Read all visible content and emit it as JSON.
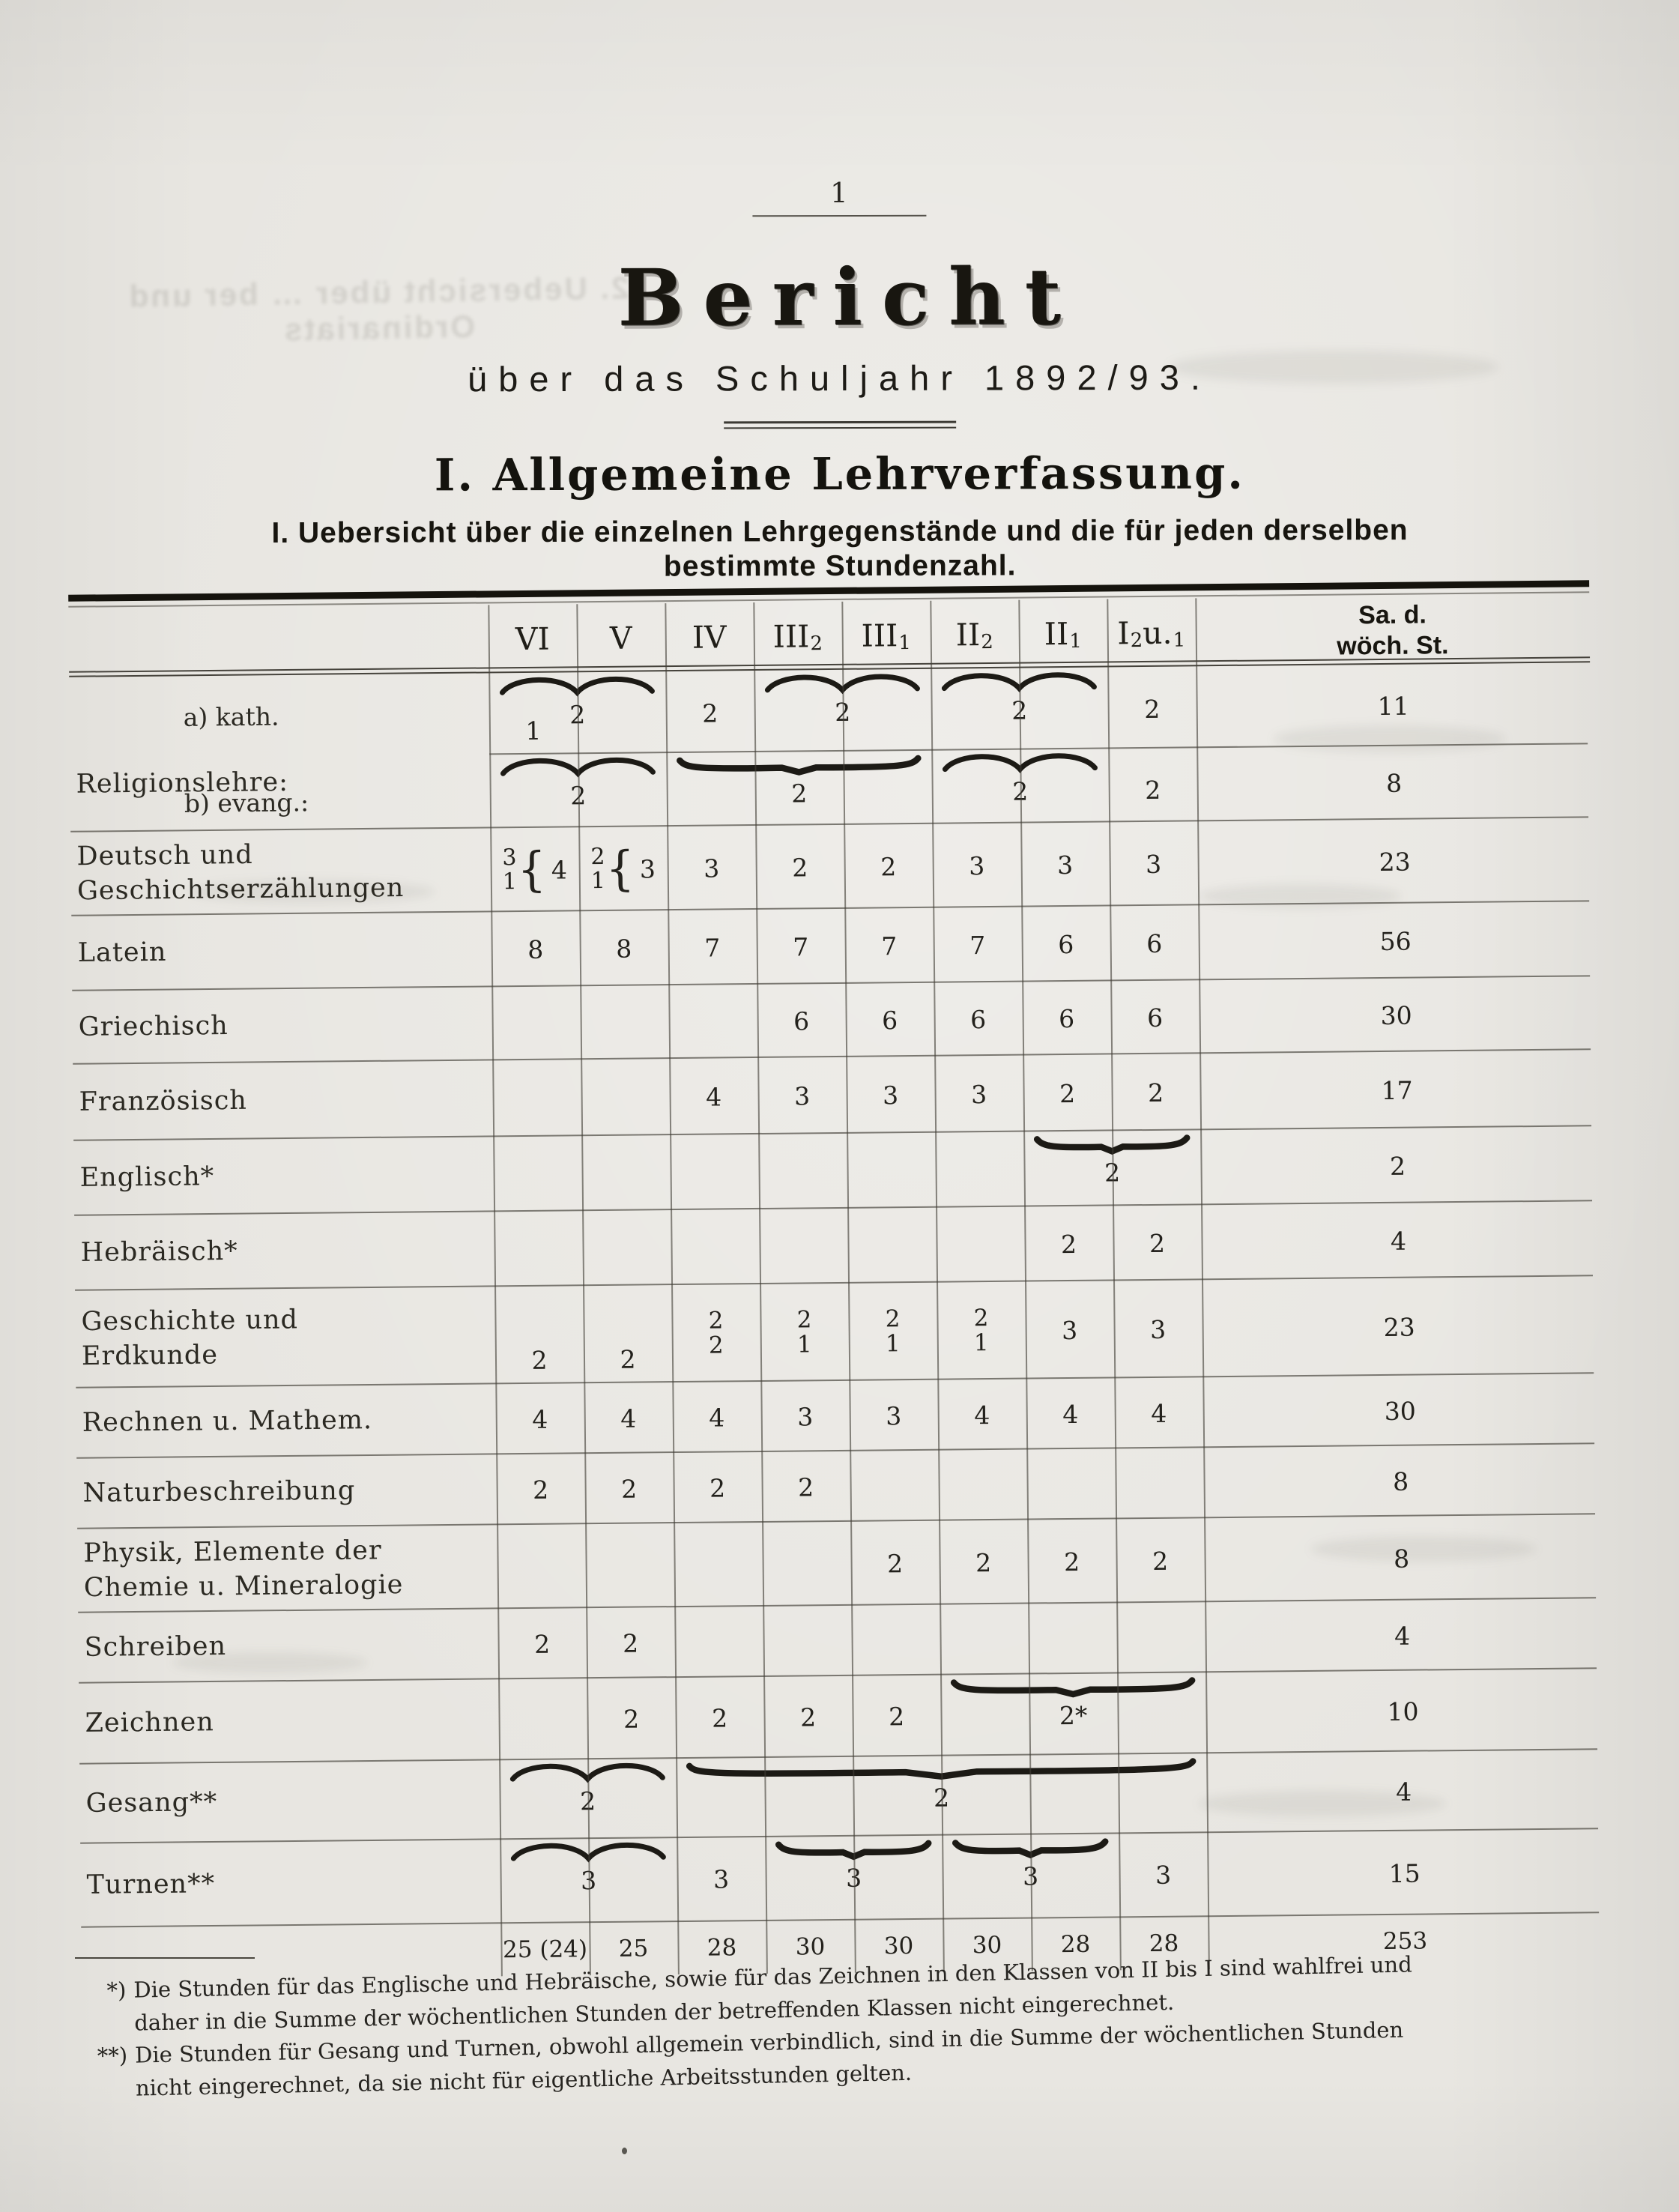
{
  "page": {
    "number": "1",
    "title": "Bericht",
    "subtitle": "über das Schuljahr 1892/93.",
    "section_heading": "I. Allgemeine Lehrverfassung.",
    "subsection_line1": "I. Uebersicht über die einzelnen Lehrgegenstände und die für jeden derselben",
    "subsection_line2": "bestimmte Stundenzahl."
  },
  "bleedthrough": [
    "2. Uebersicht über … ber und Ordinariats"
  ],
  "table": {
    "column_keys": [
      "VI",
      "V",
      "IV",
      "III2",
      "III1",
      "II2",
      "II1",
      "I2u1"
    ],
    "columns": [
      {
        "parts": [
          {
            "t": "VI"
          }
        ]
      },
      {
        "parts": [
          {
            "t": "V"
          }
        ]
      },
      {
        "parts": [
          {
            "t": "IV"
          }
        ]
      },
      {
        "parts": [
          {
            "t": "III"
          },
          {
            "t": "2",
            "sub": true
          }
        ]
      },
      {
        "parts": [
          {
            "t": "III"
          },
          {
            "t": "1",
            "sub": true
          }
        ]
      },
      {
        "parts": [
          {
            "t": "II"
          },
          {
            "t": "2",
            "sub": true
          }
        ]
      },
      {
        "parts": [
          {
            "t": "II"
          },
          {
            "t": "1",
            "sub": true
          }
        ]
      },
      {
        "parts": [
          {
            "t": "I"
          },
          {
            "t": "2",
            "sub": true
          },
          {
            "t": "u."
          },
          {
            "t": "1",
            "sub": true
          }
        ]
      }
    ],
    "sum_header_line1": "Sa. d.",
    "sum_header_line2": "wöch. St.",
    "rows": [
      {
        "id": "religion-kath",
        "indent_label": "a) kath.",
        "cells": [
          {
            "v": "1",
            "low": true
          },
          null,
          {
            "v": "2",
            "hi": true
          },
          null,
          null,
          null,
          null,
          {
            "v": "2",
            "hi": true
          }
        ],
        "braces": [
          {
            "from": 0,
            "to": 1,
            "style": "curly",
            "value": "2"
          },
          {
            "from": 3,
            "to": 4,
            "style": "curly",
            "value": "2"
          },
          {
            "from": 5,
            "to": 6,
            "style": "curly",
            "value": "2"
          }
        ],
        "sum": "11",
        "sep": "values"
      },
      {
        "id": "religion-evang",
        "indent_label": "b) evang.:",
        "side_label": "Religionslehre:",
        "cells": [
          null,
          null,
          null,
          null,
          null,
          null,
          null,
          {
            "v": "2",
            "hi": true
          }
        ],
        "braces": [
          {
            "from": 0,
            "to": 1,
            "style": "curly",
            "value": "2"
          },
          {
            "from": 2,
            "to": 4,
            "style": "flat",
            "value": "2"
          },
          {
            "from": 5,
            "to": 6,
            "style": "curly",
            "value": "2"
          }
        ],
        "sum": "8"
      },
      {
        "id": "deutsch",
        "label": [
          "Deutsch und",
          "Geschichtserzählungen"
        ],
        "cells": [
          {
            "stack": [
              "3",
              "1"
            ],
            "total": "4"
          },
          {
            "stack": [
              "2",
              "1"
            ],
            "total": "3"
          },
          "3",
          "2",
          "2",
          "3",
          "3",
          "3"
        ],
        "sum": "23"
      },
      {
        "id": "latein",
        "label": [
          "Latein"
        ],
        "cells": [
          "8",
          "8",
          "7",
          "7",
          "7",
          "7",
          "6",
          "6"
        ],
        "sum": "56"
      },
      {
        "id": "griechisch",
        "label": [
          "Griechisch"
        ],
        "cells": [
          null,
          null,
          null,
          "6",
          "6",
          "6",
          "6",
          "6"
        ],
        "sum": "30"
      },
      {
        "id": "franzoesisch",
        "label": [
          "Französisch"
        ],
        "cells": [
          null,
          null,
          "4",
          "3",
          "3",
          "3",
          "2",
          "2"
        ],
        "sum": "17"
      },
      {
        "id": "englisch",
        "label": [
          "Englisch*"
        ],
        "cells": [],
        "braces": [
          {
            "from": 6,
            "to": 7,
            "style": "flat",
            "value": "2"
          }
        ],
        "sum": "2"
      },
      {
        "id": "hebraeisch",
        "label": [
          "Hebräisch*"
        ],
        "cells": [
          null,
          null,
          null,
          null,
          null,
          null,
          "2",
          "2"
        ],
        "sum": "4"
      },
      {
        "id": "geschichte",
        "label": [
          "Geschichte und",
          "Erdkunde"
        ],
        "cells": [
          {
            "v": "2",
            "low": true
          },
          {
            "v": "2",
            "low": true
          },
          {
            "stack": [
              "2",
              "2"
            ]
          },
          {
            "stack": [
              "2",
              "1"
            ]
          },
          {
            "stack": [
              "2",
              "1"
            ]
          },
          {
            "stack": [
              "2",
              "1"
            ]
          },
          "3",
          "3"
        ],
        "sum": "23"
      },
      {
        "id": "rechnen",
        "label": [
          "Rechnen u. Mathem."
        ],
        "cells": [
          "4",
          "4",
          "4",
          "3",
          "3",
          "4",
          "4",
          "4"
        ],
        "sum": "30"
      },
      {
        "id": "naturbeschreibung",
        "label": [
          "Naturbeschreibung"
        ],
        "cells": [
          "2",
          "2",
          "2",
          "2"
        ],
        "sum": "8"
      },
      {
        "id": "physik",
        "label": [
          "Physik, Elemente der",
          "Chemie u. Mineralogie"
        ],
        "cells": [
          null,
          null,
          null,
          null,
          "2",
          "2",
          "2",
          "2"
        ],
        "sum": "8"
      },
      {
        "id": "schreiben",
        "label": [
          "Schreiben"
        ],
        "cells": [
          "2",
          "2"
        ],
        "sum": "4"
      },
      {
        "id": "zeichnen",
        "label": [
          "Zeichnen"
        ],
        "cells": [
          null,
          "2",
          "2",
          "2",
          "2"
        ],
        "braces": [
          {
            "from": 5,
            "to": 7,
            "style": "flat",
            "value": "2*"
          }
        ],
        "sum": "10"
      },
      {
        "id": "gesang",
        "label": [
          "Gesang**"
        ],
        "cells": [],
        "braces": [
          {
            "from": 0,
            "to": 1,
            "style": "curly",
            "value": "2"
          },
          {
            "from": 2,
            "to": 7,
            "style": "flat",
            "value": "2"
          }
        ],
        "sum": "4"
      },
      {
        "id": "turnen",
        "label": [
          "Turnen**"
        ],
        "cells": [
          null,
          null,
          {
            "v": "3",
            "hi": true
          },
          null,
          null,
          null,
          null,
          {
            "v": "3",
            "hi": true
          }
        ],
        "braces": [
          {
            "from": 0,
            "to": 1,
            "style": "curly",
            "value": "3"
          },
          {
            "from": 3,
            "to": 4,
            "style": "flat",
            "value": "3"
          },
          {
            "from": 5,
            "to": 6,
            "style": "flat",
            "value": "3"
          }
        ],
        "sum": "15"
      },
      {
        "id": "totals",
        "cells": [
          "25 (24)",
          "25",
          "28",
          "30",
          "30",
          "30",
          "28",
          "28"
        ],
        "sum": "253",
        "sep": "none"
      }
    ]
  },
  "footnotes": [
    {
      "marker": "*)",
      "line1": "Die Stunden für das Englische und Hebräische, sowie für das Zeichnen in den Klassen von II bis I sind wahlfrei und",
      "line2": "daher in die Summe der wöchentlichen Stunden der betreffenden Klassen nicht eingerechnet."
    },
    {
      "marker": "**)",
      "line1": "Die Stunden für Gesang und Turnen, obwohl allgemein verbindlich, sind in die Summe der wöchentlichen Stunden",
      "line2": "nicht eingerechnet, da sie nicht für eigentliche Arbeitsstunden gelten."
    }
  ]
}
